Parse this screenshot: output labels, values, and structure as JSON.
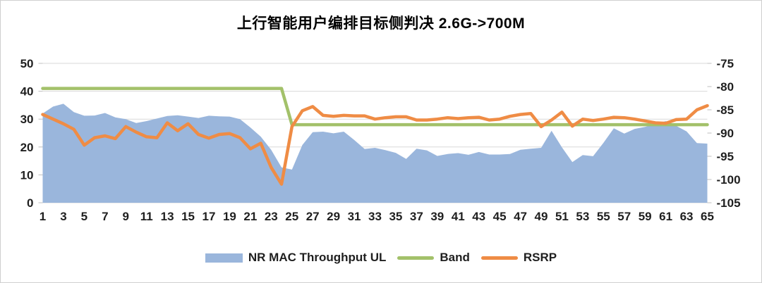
{
  "colors": {
    "background": "#FFFFFF",
    "border": "#CFCFCF",
    "grid": "#D9D9D9",
    "tick": "#BFBFBF",
    "axis_text": "#1F1F1F",
    "title_text": "#000000"
  },
  "chart_data": {
    "type": "combo",
    "title": "上行智能用户编排目标侧判决 2.6G->700M",
    "x": [
      1,
      2,
      3,
      4,
      5,
      6,
      7,
      8,
      9,
      10,
      11,
      12,
      13,
      14,
      15,
      16,
      17,
      18,
      19,
      20,
      21,
      22,
      23,
      24,
      25,
      26,
      27,
      28,
      29,
      30,
      31,
      32,
      33,
      34,
      35,
      36,
      37,
      38,
      39,
      40,
      41,
      42,
      43,
      44,
      45,
      46,
      47,
      48,
      49,
      50,
      51,
      52,
      53,
      54,
      55,
      56,
      57,
      58,
      59,
      60,
      61,
      62,
      63,
      64,
      65
    ],
    "x_tick_labels": [
      "1",
      "3",
      "5",
      "7",
      "9",
      "11",
      "13",
      "15",
      "17",
      "19",
      "21",
      "23",
      "25",
      "27",
      "29",
      "31",
      "33",
      "35",
      "37",
      "39",
      "41",
      "43",
      "45",
      "47",
      "49",
      "51",
      "53",
      "55",
      "57",
      "59",
      "61",
      "63",
      "65"
    ],
    "grid": "horizontal",
    "legend_position": "bottom",
    "axes": {
      "left": {
        "min": 0,
        "max": 50,
        "step": 10,
        "labels": [
          "50",
          "40",
          "30",
          "20",
          "10",
          "0"
        ]
      },
      "right": {
        "min": -105,
        "max": -75,
        "step": 5,
        "labels": [
          "-75",
          "-80",
          "-85",
          "-90",
          "-95",
          "-100",
          "-105"
        ]
      }
    },
    "series": [
      {
        "name": "NR MAC Throughput UL",
        "type": "area",
        "axis": "left",
        "color": "#9AB6DC",
        "values": [
          32,
          34.5,
          35.5,
          32.5,
          31.2,
          31.3,
          32.2,
          30.6,
          30,
          28.6,
          29.3,
          30.2,
          31.1,
          31.4,
          30.9,
          30.4,
          31.2,
          31,
          30.9,
          30,
          27,
          23.7,
          19,
          12.7,
          11.9,
          20.7,
          25.3,
          25.5,
          24.9,
          25.5,
          22.5,
          19.3,
          19.7,
          18.9,
          17.9,
          15.7,
          19.4,
          18.8,
          16.8,
          17.5,
          17.8,
          17.2,
          18.2,
          17.3,
          17.3,
          17.5,
          19,
          19.4,
          19.7,
          25.8,
          19.9,
          14.6,
          17.1,
          16.7,
          21.5,
          26.7,
          24.8,
          26.5,
          27.2,
          28.2,
          29.3,
          27.6,
          25.6,
          21.4,
          21.2
        ]
      },
      {
        "name": "Band",
        "type": "line",
        "axis": "left",
        "color": "#A3C16A",
        "values": [
          41,
          41,
          41,
          41,
          41,
          41,
          41,
          41,
          41,
          41,
          41,
          41,
          41,
          41,
          41,
          41,
          41,
          41,
          41,
          41,
          41,
          41,
          41,
          41,
          28,
          28,
          28,
          28,
          28,
          28,
          28,
          28,
          28,
          28,
          28,
          28,
          28,
          28,
          28,
          28,
          28,
          28,
          28,
          28,
          28,
          28,
          28,
          28,
          28,
          28,
          28,
          28,
          28,
          28,
          28,
          28,
          28,
          28,
          28,
          28,
          28,
          28,
          28,
          28,
          28
        ]
      },
      {
        "name": "RSRP",
        "type": "line",
        "axis": "right",
        "color": "#EF8C45",
        "values": [
          -86,
          -87,
          -88,
          -89.2,
          -92.6,
          -91,
          -90.6,
          -91.2,
          -88.6,
          -89.8,
          -90.8,
          -91,
          -87.8,
          -89.5,
          -88,
          -90.3,
          -91.1,
          -90.3,
          -90.1,
          -91,
          -93.4,
          -92.2,
          -97.4,
          -101,
          -88.6,
          -85.2,
          -84.3,
          -86.2,
          -86.4,
          -86.2,
          -86.3,
          -86.3,
          -87,
          -86.7,
          -86.5,
          -86.5,
          -87.2,
          -87.2,
          -87,
          -86.7,
          -86.9,
          -86.7,
          -86.6,
          -87.2,
          -87,
          -86.4,
          -86,
          -85.8,
          -88.6,
          -87.2,
          -85.5,
          -88.5,
          -87,
          -87.3,
          -87,
          -86.6,
          -86.7,
          -87,
          -87.4,
          -87.8,
          -87.9,
          -87.1,
          -87,
          -85,
          -84.1
        ]
      }
    ]
  }
}
